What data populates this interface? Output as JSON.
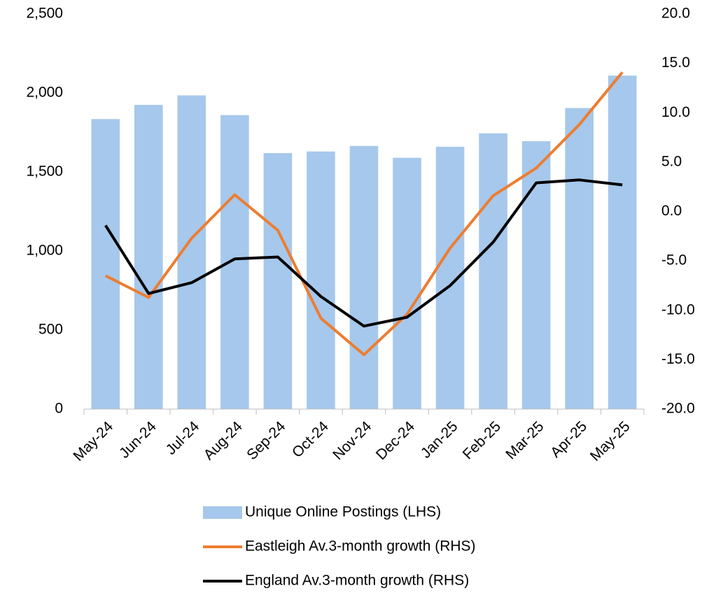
{
  "chart_data": {
    "type": "bar",
    "categories": [
      "May-24",
      "Jun-24",
      "Jul-24",
      "Aug-24",
      "Sep-24",
      "Oct-24",
      "Nov-24",
      "Dec-24",
      "Jan-25",
      "Feb-25",
      "Mar-25",
      "Apr-25",
      "May-25"
    ],
    "series": [
      {
        "name": "Unique Online Postings (LHS)",
        "type": "bar",
        "color": "#a6c8ec",
        "values": [
          1835,
          1925,
          1985,
          1860,
          1620,
          1630,
          1665,
          1590,
          1660,
          1745,
          1695,
          1905,
          2110
        ]
      },
      {
        "name": "Eastleigh Av.3-month growth (RHS)",
        "type": "line",
        "axis": "y2",
        "color": "#ed7d31",
        "values": [
          -6.5,
          -8.7,
          -2.7,
          1.7,
          -1.9,
          -10.8,
          -14.5,
          -10.4,
          -3.7,
          1.6,
          4.4,
          8.8,
          14.1
        ]
      },
      {
        "name": "England Av.3-month growth (RHS)",
        "type": "line",
        "axis": "y2",
        "color": "#000000",
        "values": [
          -1.4,
          -8.3,
          -7.2,
          -4.8,
          -4.6,
          -8.6,
          -11.6,
          -10.7,
          -7.5,
          -3.1,
          2.9,
          3.2,
          2.7
        ]
      }
    ],
    "ylim": [
      0,
      2500
    ],
    "yticks": [
      0,
      500,
      {
        "value": 1000,
        "label": "1,000"
      },
      {
        "value": 1500,
        "label": "1,500"
      },
      {
        "value": 2000,
        "label": "2,000"
      },
      {
        "value": 2500,
        "label": "2,500"
      }
    ],
    "y2lim": [
      -20,
      20
    ],
    "y2ticks": [
      {
        "value": -20,
        "label": "-20.0"
      },
      {
        "value": -15,
        "label": "-15.0"
      },
      {
        "value": -10,
        "label": "-10.0"
      },
      {
        "value": -5,
        "label": "-5.0"
      },
      {
        "value": 0,
        "label": "0.0"
      },
      {
        "value": 5,
        "label": "5.0"
      },
      {
        "value": 10,
        "label": "10.0"
      },
      {
        "value": 15,
        "label": "15.0"
      },
      {
        "value": 20,
        "label": "20.0"
      }
    ],
    "legend": "bottom"
  }
}
